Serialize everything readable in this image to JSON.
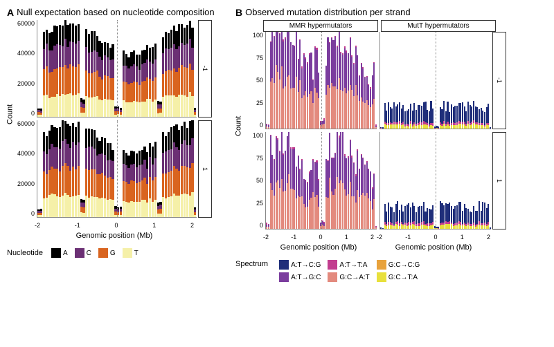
{
  "panelA": {
    "letter": "A",
    "title": "Null expectation based on nucleotide composition",
    "ylabel": "Count",
    "xlabel": "Genomic position (Mb)",
    "yticks": [
      "0",
      "20000",
      "40000",
      "60000"
    ],
    "ymax": 65000,
    "xticks": [
      "-2",
      "-1",
      "0",
      "1",
      "2"
    ],
    "strips": [
      "-1",
      "1"
    ],
    "legend_title": "Nucleotide",
    "nucleotides": [
      {
        "name": "A",
        "color": "#000000"
      },
      {
        "name": "C",
        "color": "#6b3074"
      },
      {
        "name": "G",
        "color": "#d9641f"
      },
      {
        "name": "T",
        "color": "#f5f0a8"
      }
    ],
    "bins": 60
  },
  "panelB": {
    "letter": "B",
    "title": "Observed mutation distribution per strand",
    "ylabel": "Count",
    "xlabel": "Genomic position (Mb)",
    "yticks": [
      "0",
      "25",
      "50",
      "75",
      "100"
    ],
    "ymax": 105,
    "xticks": [
      "-2",
      "-1",
      "0",
      "1",
      "2"
    ],
    "strips": [
      "-1",
      "1"
    ],
    "facets": [
      "MMR hypermutators",
      "MutT hypermutators"
    ],
    "legend_title": "Spectrum",
    "spectrum": [
      {
        "name": "A:T→C:G",
        "color": "#1f2e7a"
      },
      {
        "name": "A:T→G:C",
        "color": "#7b3d9e"
      },
      {
        "name": "A:T→T:A",
        "color": "#c23d8f"
      },
      {
        "name": "G:C→A:T",
        "color": "#e38a7e"
      },
      {
        "name": "G:C→C:G",
        "color": "#e8a23c"
      },
      {
        "name": "G:C→T:A",
        "color": "#e8e03c"
      }
    ],
    "bins": 60
  }
}
